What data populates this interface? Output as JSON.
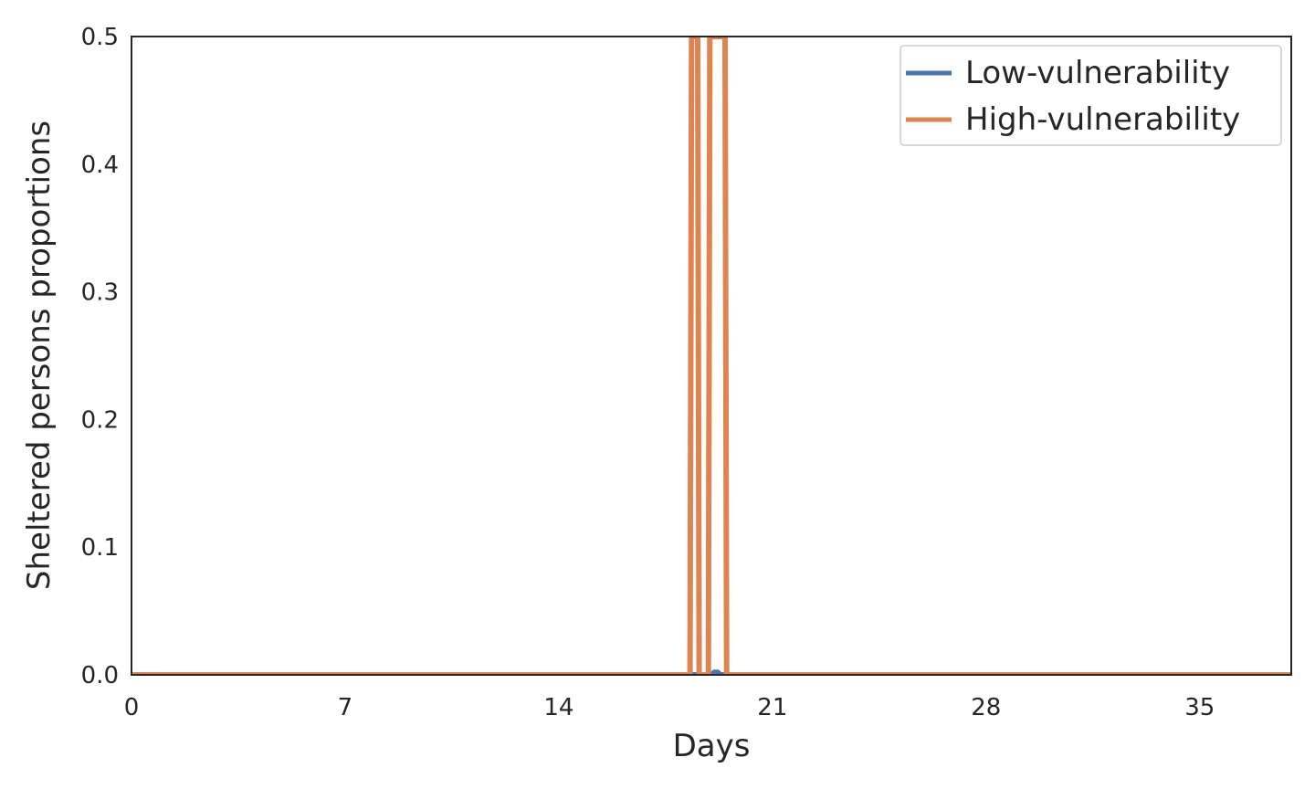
{
  "chart_data": {
    "type": "line",
    "xlabel": "Days",
    "ylabel": "Sheltered persons proportions",
    "xlim": [
      0,
      38
    ],
    "ylim": [
      0,
      0.5
    ],
    "xticks": [
      0,
      7,
      14,
      21,
      28,
      35
    ],
    "xtick_labels": [
      "0",
      "7",
      "14",
      "21",
      "28",
      "35"
    ],
    "yticks": [
      0.0,
      0.1,
      0.2,
      0.3,
      0.4,
      0.5
    ],
    "ytick_labels": [
      "0.0",
      "0.1",
      "0.2",
      "0.3",
      "0.4",
      "0.5"
    ],
    "grid": false,
    "legend_position": "top-right",
    "series": [
      {
        "name": "Low-vulnerability",
        "color": "#4c72b0",
        "x": [
          0,
          19.0,
          19.1,
          19.2,
          19.3,
          38
        ],
        "y": [
          0,
          0,
          0.002,
          0.002,
          0,
          0
        ]
      },
      {
        "name": "High-vulnerability",
        "color": "#dd8452",
        "x": [
          0,
          18.3,
          18.35,
          18.55,
          18.6,
          18.9,
          18.95,
          19.45,
          19.5,
          19.55,
          38
        ],
        "y": [
          0,
          0,
          0.5,
          0.5,
          0,
          0,
          0.5,
          0.5,
          0,
          0,
          0
        ]
      }
    ]
  }
}
